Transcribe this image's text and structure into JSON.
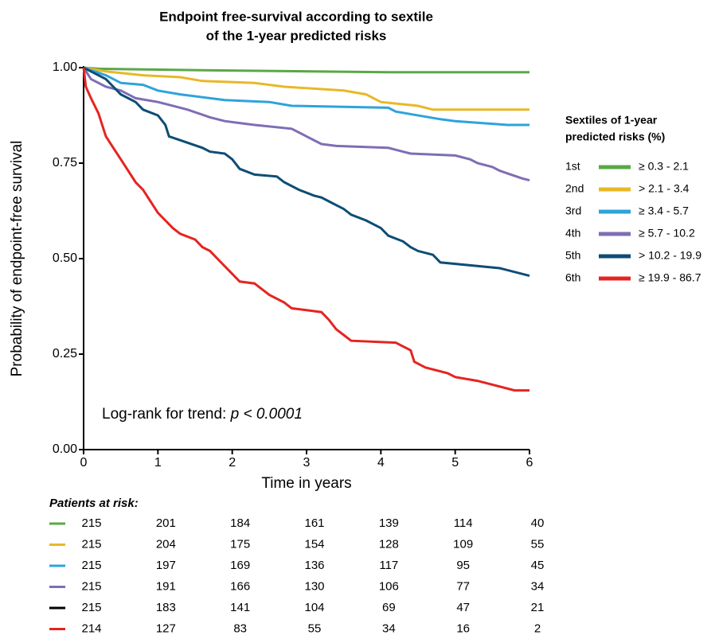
{
  "chart_data": {
    "type": "line",
    "step": true,
    "title": [
      "Endpoint free-survival according to sextile",
      "of the 1-year predicted risks"
    ],
    "x_label": "Time in years",
    "y_label": "Probability of endpoint-free survival",
    "xlim": [
      0,
      6
    ],
    "ylim": [
      0,
      1
    ],
    "xticks": [
      0,
      1,
      2,
      3,
      4,
      5,
      6
    ],
    "yticks": [
      {
        "value": 0,
        "label": "0.00"
      },
      {
        "value": 0.25,
        "label": "0.25"
      },
      {
        "value": 0.5,
        "label": "0.50"
      },
      {
        "value": 0.75,
        "label": "0.75"
      },
      {
        "value": 1,
        "label": "1.00"
      }
    ],
    "annotation": {
      "text": "Log-rank for trend:",
      "p": "p < 0.0001"
    },
    "legend_title": [
      "Sextiles of 1-year",
      "predicted risks (%)"
    ],
    "legend_position": "right",
    "series": [
      {
        "rank": "1st",
        "name": "≥ 0.3 - 2.1",
        "color": "#5aa846",
        "x": [
          0,
          0.2,
          1.3,
          4.1,
          6
        ],
        "values": [
          1,
          0.997,
          0.994,
          0.988,
          0.988
        ]
      },
      {
        "rank": "2nd",
        "name": "> 2.1 - 3.4",
        "color": "#e8b828",
        "x": [
          0,
          0.3,
          0.8,
          1.3,
          1.6,
          2.3,
          2.7,
          3.5,
          3.8,
          4.0,
          4.5,
          4.7,
          6
        ],
        "values": [
          1,
          0.99,
          0.98,
          0.975,
          0.965,
          0.96,
          0.95,
          0.94,
          0.93,
          0.91,
          0.9,
          0.89,
          0.89
        ]
      },
      {
        "rank": "3rd",
        "name": "≥ 3.4 - 5.7",
        "color": "#2ea3dc",
        "x": [
          0,
          0.15,
          0.3,
          0.5,
          0.8,
          1.0,
          1.3,
          1.9,
          2.5,
          2.8,
          4.1,
          4.2,
          4.8,
          5.0,
          5.7,
          6
        ],
        "values": [
          1,
          0.99,
          0.98,
          0.96,
          0.955,
          0.94,
          0.93,
          0.915,
          0.91,
          0.9,
          0.895,
          0.885,
          0.865,
          0.86,
          0.85,
          0.85
        ]
      },
      {
        "rank": "4th",
        "name": "≥ 5.7 - 10.2",
        "color": "#7f6db5",
        "x": [
          0,
          0.1,
          0.3,
          0.5,
          0.6,
          0.7,
          1.0,
          1.1,
          1.4,
          1.7,
          1.9,
          2.1,
          2.3,
          2.8,
          3.0,
          3.2,
          3.4,
          4.1,
          4.2,
          4.4,
          5.0,
          5.2,
          5.3,
          5.5,
          5.6,
          5.9,
          6
        ],
        "values": [
          1,
          0.97,
          0.95,
          0.94,
          0.93,
          0.92,
          0.91,
          0.905,
          0.89,
          0.87,
          0.86,
          0.855,
          0.85,
          0.84,
          0.82,
          0.8,
          0.795,
          0.79,
          0.785,
          0.775,
          0.77,
          0.76,
          0.75,
          0.74,
          0.73,
          0.71,
          0.705
        ]
      },
      {
        "rank": "5th",
        "name": "> 10.2 - 19.9",
        "color": "#0d4d75",
        "x": [
          0,
          0.1,
          0.3,
          0.4,
          0.5,
          0.7,
          0.8,
          1.0,
          1.1,
          1.15,
          1.3,
          1.6,
          1.7,
          1.9,
          2.0,
          2.1,
          2.3,
          2.6,
          2.7,
          2.9,
          3.1,
          3.2,
          3.3,
          3.5,
          3.6,
          3.8,
          4.0,
          4.1,
          4.3,
          4.4,
          4.5,
          4.7,
          4.8,
          5.6,
          6
        ],
        "values": [
          1,
          0.99,
          0.97,
          0.95,
          0.93,
          0.91,
          0.89,
          0.875,
          0.85,
          0.82,
          0.81,
          0.79,
          0.78,
          0.775,
          0.76,
          0.735,
          0.72,
          0.715,
          0.7,
          0.68,
          0.665,
          0.66,
          0.65,
          0.63,
          0.615,
          0.6,
          0.58,
          0.56,
          0.545,
          0.53,
          0.52,
          0.51,
          0.49,
          0.475,
          0.455
        ]
      },
      {
        "rank": "6th",
        "name": "≥ 19.9 - 86.7",
        "color": "#e52420",
        "x": [
          0,
          0.03,
          0.1,
          0.2,
          0.3,
          0.4,
          0.5,
          0.6,
          0.7,
          0.8,
          0.9,
          1.0,
          1.1,
          1.2,
          1.3,
          1.5,
          1.6,
          1.7,
          1.8,
          1.9,
          2.0,
          2.1,
          2.3,
          2.4,
          2.5,
          2.7,
          2.8,
          3.0,
          3.2,
          3.3,
          3.4,
          3.5,
          3.6,
          4.2,
          4.4,
          4.45,
          4.6,
          4.9,
          5.0,
          5.3,
          5.8,
          6
        ],
        "values": [
          1,
          0.95,
          0.92,
          0.88,
          0.82,
          0.79,
          0.76,
          0.73,
          0.7,
          0.68,
          0.65,
          0.62,
          0.6,
          0.58,
          0.565,
          0.55,
          0.53,
          0.52,
          0.5,
          0.48,
          0.46,
          0.44,
          0.435,
          0.42,
          0.405,
          0.385,
          0.37,
          0.365,
          0.36,
          0.34,
          0.315,
          0.3,
          0.285,
          0.28,
          0.26,
          0.23,
          0.215,
          0.2,
          0.19,
          0.18,
          0.155,
          0.155
        ]
      }
    ],
    "risk_table": {
      "title": "Patients at risk:",
      "rows": [
        {
          "color": "#5aa846",
          "values": [
            215,
            201,
            184,
            161,
            139,
            114,
            40
          ]
        },
        {
          "color": "#e8b828",
          "values": [
            215,
            204,
            175,
            154,
            128,
            109,
            55
          ]
        },
        {
          "color": "#2ea3dc",
          "values": [
            215,
            197,
            169,
            136,
            117,
            95,
            45
          ]
        },
        {
          "color": "#7f6db5",
          "values": [
            215,
            191,
            166,
            130,
            106,
            77,
            34
          ]
        },
        {
          "color": "#000000",
          "values": [
            215,
            183,
            141,
            104,
            69,
            47,
            21
          ]
        },
        {
          "color": "#e52420",
          "values": [
            214,
            127,
            83,
            55,
            34,
            16,
            2
          ]
        }
      ]
    }
  }
}
